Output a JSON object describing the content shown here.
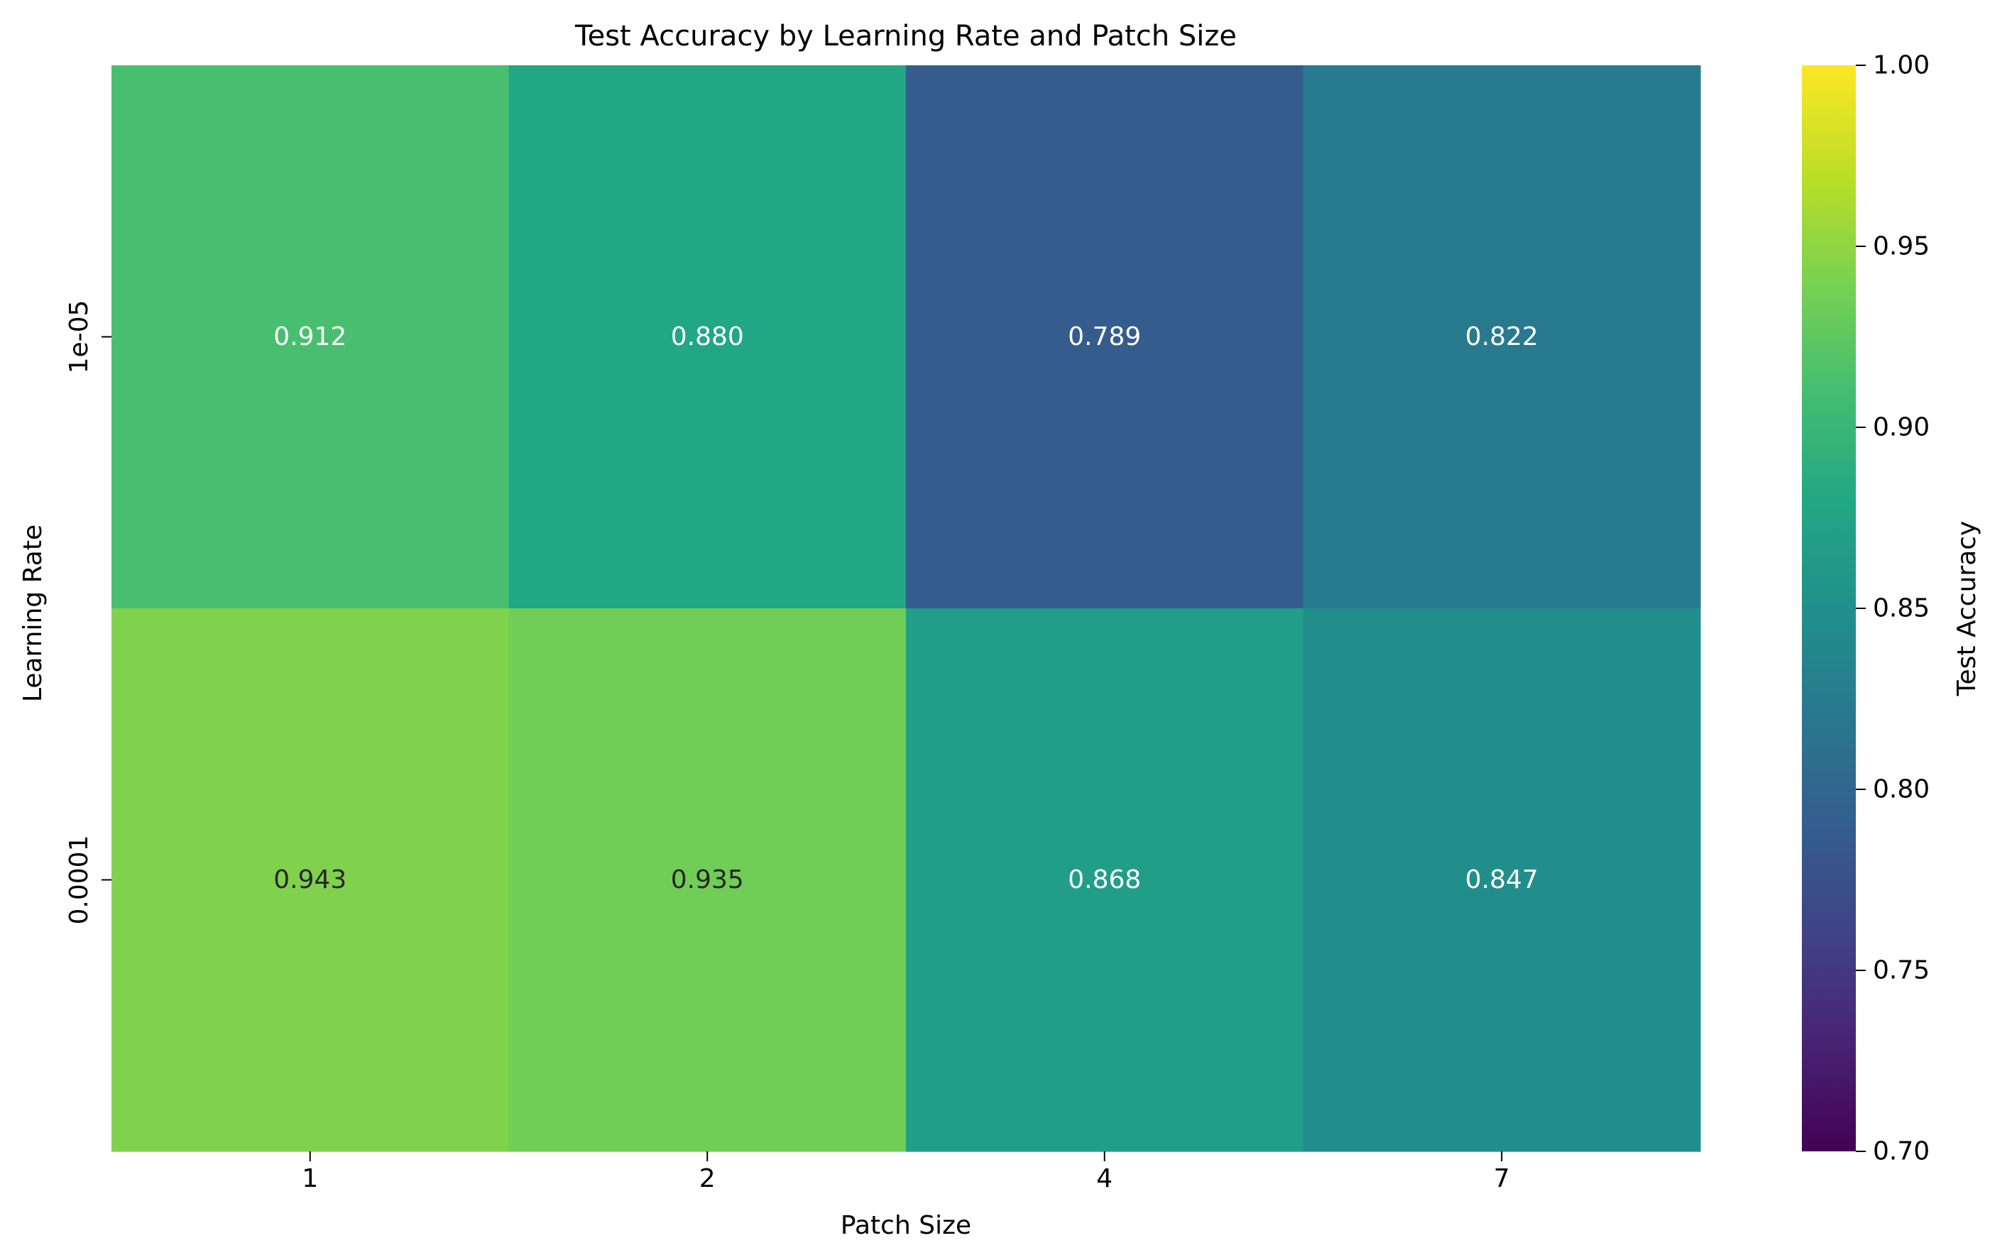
{
  "chart_data": {
    "type": "heatmap",
    "title": "Test Accuracy by Learning Rate and Patch Size",
    "xlabel": "Patch Size",
    "ylabel": "Learning Rate",
    "x_categories": [
      "1",
      "2",
      "4",
      "7"
    ],
    "y_categories": [
      "1e-05",
      "0.0001"
    ],
    "values": [
      [
        0.912,
        0.88,
        0.789,
        0.822
      ],
      [
        0.943,
        0.935,
        0.868,
        0.847
      ]
    ],
    "value_labels": [
      [
        "0.912",
        "0.880",
        "0.789",
        "0.822"
      ],
      [
        "0.943",
        "0.935",
        "0.868",
        "0.847"
      ]
    ],
    "colormap": "viridis",
    "colorbar": {
      "label": "Test Accuracy",
      "range": [
        0.7,
        1.0
      ],
      "ticks": [
        0.7,
        0.75,
        0.8,
        0.85,
        0.9,
        0.95,
        1.0
      ],
      "tick_labels": [
        "0.70",
        "0.75",
        "0.80",
        "0.85",
        "0.90",
        "0.95",
        "1.00"
      ]
    }
  }
}
